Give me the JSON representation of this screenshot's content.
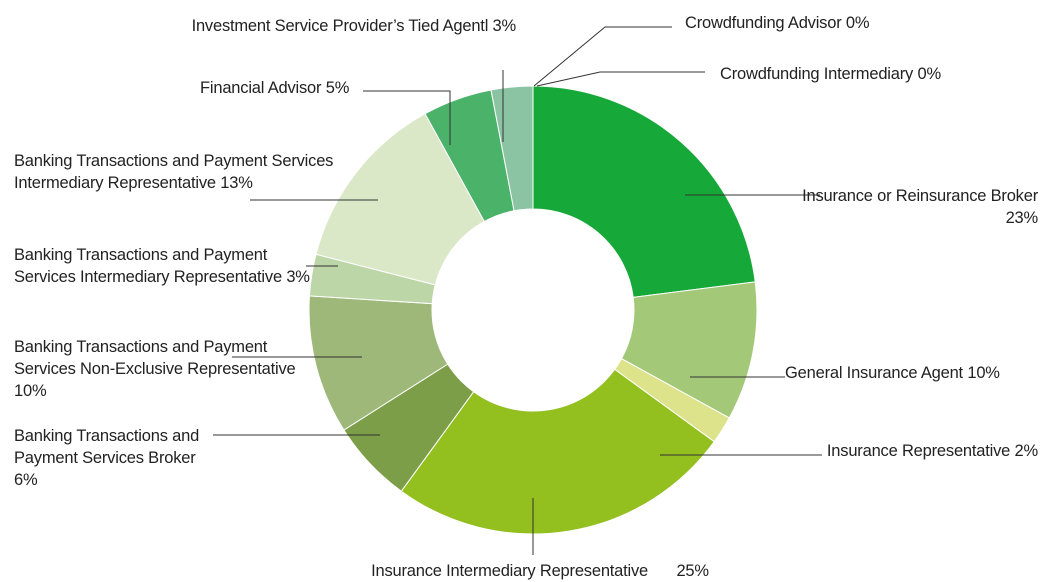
{
  "chart_data": {
    "type": "donut",
    "categories": [
      "Insurance or Reinsurance Broker",
      "General Insurance Agent",
      "Insurance Representative",
      "Insurance Intermediary Representative",
      "Banking Transactions and Payment Services Broker",
      "Banking Transactions and Payment Services Non-Exclusive Representative",
      "Banking Transactions and Payment Services Intermediary Representative",
      "Banking Transactions and Payment Services Intermediary Representative",
      "Financial Advisor",
      "Investment Service Provider’s Tied Agentl",
      "Crowdfunding Intermediary",
      "Crowdfunding Advisor"
    ],
    "values": [
      23,
      10,
      2,
      25,
      6,
      10,
      3,
      13,
      5,
      3,
      0,
      0
    ],
    "value_labels": [
      "23%",
      "10%",
      "2%",
      "25%",
      "6%",
      "10%",
      "3%",
      "13%",
      "5%",
      "3%",
      "0%",
      "0%"
    ],
    "colors": [
      "#17a83a",
      "#a3c978",
      "#dce38a",
      "#93bf1f",
      "#7d9e48",
      "#9db878",
      "#bcd6a8",
      "#dae8c8",
      "#4bb26a",
      "#8bc4a2",
      "#8bc4a2",
      "#8bc4a2"
    ]
  }
}
